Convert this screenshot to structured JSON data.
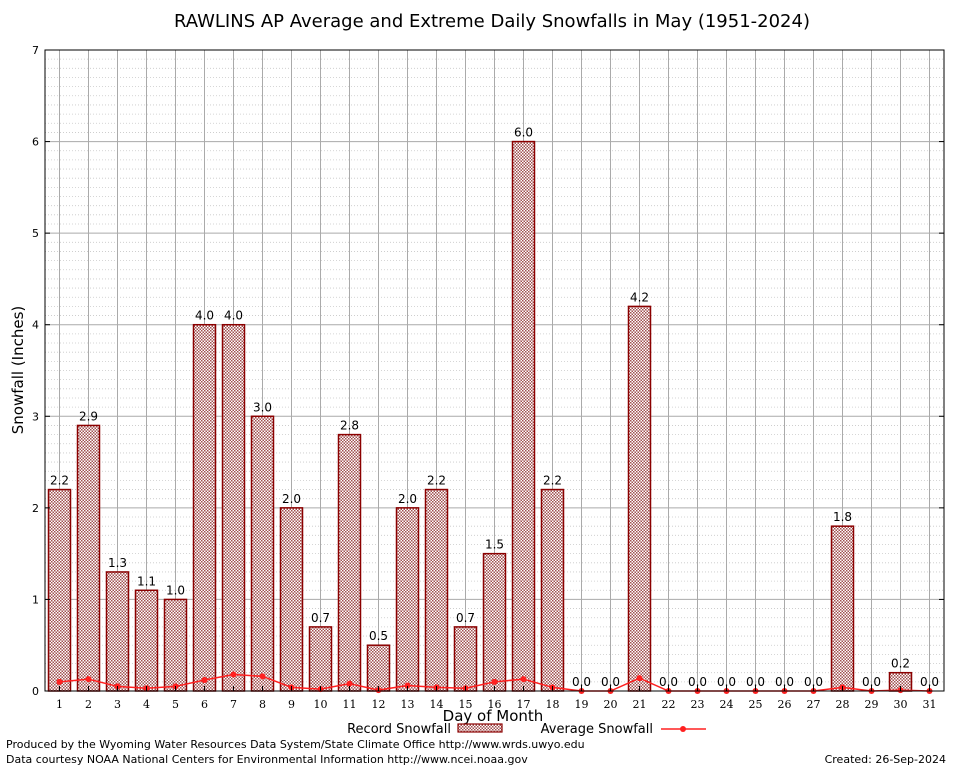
{
  "chart_data": {
    "type": "bar",
    "title": "RAWLINS AP Average and Extreme Daily Snowfalls in May (1951-2024)",
    "xlabel": "Day of Month",
    "ylabel": "Snowfall (Inches)",
    "ylim": [
      0,
      7
    ],
    "yticks": [
      "0",
      "1",
      "2",
      "3",
      "4",
      "5",
      "6",
      "7"
    ],
    "grid": true,
    "legend_position": "bottom",
    "categories": [
      "1",
      "2",
      "3",
      "4",
      "5",
      "6",
      "7",
      "8",
      "9",
      "10",
      "11",
      "12",
      "13",
      "14",
      "15",
      "16",
      "17",
      "18",
      "19",
      "20",
      "21",
      "22",
      "23",
      "24",
      "25",
      "26",
      "27",
      "28",
      "29",
      "30",
      "31"
    ],
    "series": [
      {
        "name": "Record Snowfall",
        "kind": "bar",
        "color": "#8b0000",
        "values": [
          2.2,
          2.9,
          1.3,
          1.1,
          1.0,
          4.0,
          4.0,
          3.0,
          2.0,
          0.7,
          2.8,
          0.5,
          2.0,
          2.2,
          0.7,
          1.5,
          6.0,
          2.2,
          0.0,
          0.0,
          4.2,
          0.0,
          0.0,
          0.0,
          0.0,
          0.0,
          0.0,
          1.8,
          0.0,
          0.2,
          0.0
        ],
        "labels": [
          "2.2",
          "2.9",
          "1.3",
          "1.1",
          "1.0",
          "4.0",
          "4.0",
          "3.0",
          "2.0",
          "0.7",
          "2.8",
          "0.5",
          "2.0",
          "2.2",
          "0.7",
          "1.5",
          "6.0",
          "2.2",
          "0.0",
          "0.0",
          "4.2",
          "0.0",
          "0.0",
          "0.0",
          "0.0",
          "0.0",
          "0.0",
          "1.8",
          "0.0",
          "0.2",
          "0.0"
        ]
      },
      {
        "name": "Average Snowfall",
        "kind": "line",
        "color": "#ff2020",
        "values": [
          0.1,
          0.13,
          0.05,
          0.03,
          0.05,
          0.12,
          0.18,
          0.16,
          0.04,
          0.02,
          0.08,
          0.01,
          0.06,
          0.04,
          0.03,
          0.1,
          0.13,
          0.04,
          0.0,
          0.0,
          0.14,
          0.0,
          0.0,
          0.0,
          0.0,
          0.0,
          0.0,
          0.04,
          0.0,
          0.01,
          0.0
        ]
      }
    ]
  },
  "footer": {
    "credit_line1": "Produced by the Wyoming Water Resources Data System/State Climate Office http://www.wrds.uwyo.edu",
    "credit_line2": "Data courtesy NOAA National Centers for Environmental Information http://www.ncei.noaa.gov",
    "created": "Created:  26-Sep-2024"
  }
}
